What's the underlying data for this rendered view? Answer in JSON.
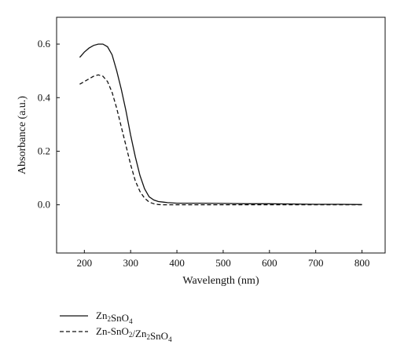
{
  "chart_data": {
    "type": "line",
    "xlabel": "Wavelength (nm)",
    "ylabel": "Absorbance (a.u.)",
    "xlim": [
      140,
      850
    ],
    "ylim": [
      -0.18,
      0.7
    ],
    "xticks": [
      200,
      300,
      400,
      500,
      600,
      700,
      800
    ],
    "yticks": [
      0.0,
      0.2,
      0.4,
      0.6
    ],
    "xtick_labels": [
      "200",
      "300",
      "400",
      "500",
      "600",
      "700",
      "800"
    ],
    "ytick_labels": [
      "0.0",
      "0.2",
      "0.4",
      "0.6"
    ],
    "grid": false,
    "legend_placement": "bottom-left, below plot",
    "series": [
      {
        "name": "Zn2SnO4",
        "legend_label": {
          "p1": "Zn",
          "s1": "2",
          "p2": "SnO",
          "s2": "4",
          "p3": ""
        },
        "dash": "solid",
        "x": [
          190,
          200,
          210,
          220,
          230,
          240,
          250,
          260,
          270,
          280,
          290,
          300,
          310,
          320,
          330,
          340,
          350,
          360,
          370,
          380,
          400,
          450,
          500,
          550,
          600,
          650,
          700,
          750,
          800
        ],
        "y": [
          0.55,
          0.57,
          0.585,
          0.595,
          0.6,
          0.6,
          0.59,
          0.56,
          0.5,
          0.43,
          0.35,
          0.26,
          0.18,
          0.11,
          0.06,
          0.03,
          0.018,
          0.012,
          0.01,
          0.008,
          0.006,
          0.006,
          0.005,
          0.004,
          0.004,
          0.003,
          0.002,
          0.002,
          0.001
        ]
      },
      {
        "name": "Zn-SnO2/Zn2SnO4",
        "legend_label": {
          "p1": "Zn-SnO",
          "s1": "2",
          "p2": "/Zn",
          "s2": "2",
          "p3": "SnO",
          "s3": "4"
        },
        "dash": "dashed",
        "x": [
          190,
          200,
          210,
          220,
          230,
          240,
          250,
          260,
          270,
          280,
          290,
          300,
          310,
          320,
          330,
          340,
          350,
          360,
          370,
          380,
          400,
          450,
          500,
          550,
          600,
          650,
          700,
          750,
          800
        ],
        "y": [
          0.45,
          0.46,
          0.47,
          0.48,
          0.485,
          0.48,
          0.46,
          0.42,
          0.36,
          0.29,
          0.22,
          0.15,
          0.09,
          0.05,
          0.025,
          0.01,
          0.004,
          0.001,
          0.0,
          0.0,
          0.0,
          0.0,
          0.0,
          0.0,
          0.0,
          0.0,
          0.0,
          0.0,
          0.0
        ]
      }
    ]
  }
}
